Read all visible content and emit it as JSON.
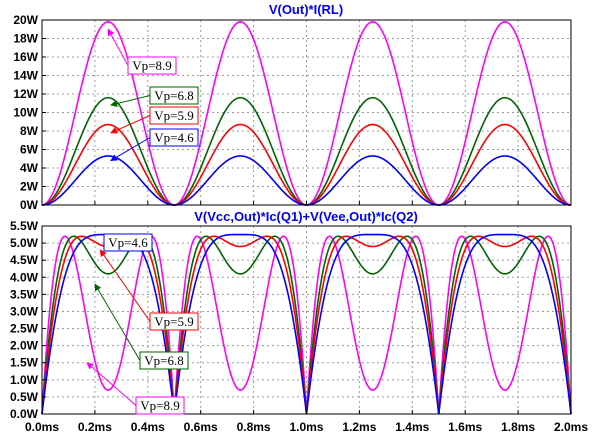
{
  "chart_data": [
    {
      "type": "line",
      "title": "V(Out)*I(RL)",
      "xlim": [
        0.0,
        2.0
      ],
      "ylim": [
        0,
        20
      ],
      "x_ticks": [
        "0.0ms",
        "0.2ms",
        "0.4ms",
        "0.6ms",
        "0.8ms",
        "1.0ms",
        "1.2ms",
        "1.4ms",
        "1.6ms",
        "1.8ms",
        "2.0ms"
      ],
      "y_ticks": [
        "0W",
        "2W",
        "4W",
        "6W",
        "8W",
        "10W",
        "12W",
        "14W",
        "16W",
        "18W",
        "20W"
      ],
      "grid": true,
      "series": [
        {
          "name": "Vp=8.9",
          "color": "#ff00ff",
          "x": [
            0.0,
            0.25,
            0.5,
            0.75,
            1.0,
            1.25,
            1.5,
            1.75,
            2.0
          ],
          "y": [
            0,
            19.8,
            0,
            19.8,
            0,
            19.8,
            0,
            19.8,
            0
          ]
        },
        {
          "name": "Vp=6.8",
          "color": "#006400",
          "x": [
            0.0,
            0.25,
            0.5,
            0.75,
            1.0,
            1.25,
            1.5,
            1.75,
            2.0
          ],
          "y": [
            0,
            11.6,
            0,
            11.6,
            0,
            11.6,
            0,
            11.6,
            0
          ]
        },
        {
          "name": "Vp=5.9",
          "color": "#ff0000",
          "x": [
            0.0,
            0.25,
            0.5,
            0.75,
            1.0,
            1.25,
            1.5,
            1.75,
            2.0
          ],
          "y": [
            0,
            8.7,
            0,
            8.7,
            0,
            8.7,
            0,
            8.7,
            0
          ]
        },
        {
          "name": "Vp=4.6",
          "color": "#0000ff",
          "x": [
            0.0,
            0.25,
            0.5,
            0.75,
            1.0,
            1.25,
            1.5,
            1.75,
            2.0
          ],
          "y": [
            0,
            5.3,
            0,
            5.3,
            0,
            5.3,
            0,
            5.3,
            0
          ]
        }
      ],
      "annotations": [
        {
          "text": "Vp=8.9",
          "target": [
            0.25,
            19.0
          ]
        },
        {
          "text": "Vp=6.8",
          "target": [
            0.26,
            10.8
          ]
        },
        {
          "text": "Vp=5.9",
          "target": [
            0.26,
            7.8
          ]
        },
        {
          "text": "Vp=4.6",
          "target": [
            0.26,
            4.8
          ]
        }
      ]
    },
    {
      "type": "line",
      "title": "V(Vcc,Out)*Ic(Q1)+V(Vee,Out)*Ic(Q2)",
      "xlim": [
        0.0,
        2.0
      ],
      "ylim": [
        0,
        5.5
      ],
      "x_ticks": [
        "0.0ms",
        "0.2ms",
        "0.4ms",
        "0.6ms",
        "0.8ms",
        "1.0ms",
        "1.2ms",
        "1.4ms",
        "1.6ms",
        "1.8ms",
        "2.0ms"
      ],
      "y_ticks": [
        "0.0W",
        "0.5W",
        "1.0W",
        "1.5W",
        "2.0W",
        "2.5W",
        "3.0W",
        "3.5W",
        "4.0W",
        "4.5W",
        "5.0W",
        "5.5W"
      ],
      "grid": true,
      "series": [
        {
          "name": "Vp=8.9",
          "color": "#ff00ff",
          "peak": 5.2,
          "min_at_quarter": 0.7
        },
        {
          "name": "Vp=6.8",
          "color": "#006400",
          "peak": 5.2,
          "min_at_quarter": 4.1
        },
        {
          "name": "Vp=5.9",
          "color": "#ff0000",
          "peak": 5.2,
          "min_at_quarter": 4.9
        },
        {
          "name": "Vp=4.6",
          "color": "#0000ff",
          "peak": 5.25,
          "min_at_quarter": 5.25
        }
      ],
      "annotations": [
        {
          "text": "Vp=4.6",
          "target": [
            0.28,
            5.1
          ]
        },
        {
          "text": "Vp=5.9",
          "target": [
            0.22,
            4.8
          ]
        },
        {
          "text": "Vp=6.8",
          "target": [
            0.2,
            3.8
          ]
        },
        {
          "text": "Vp=8.9",
          "target": [
            0.17,
            1.5
          ]
        }
      ]
    }
  ]
}
